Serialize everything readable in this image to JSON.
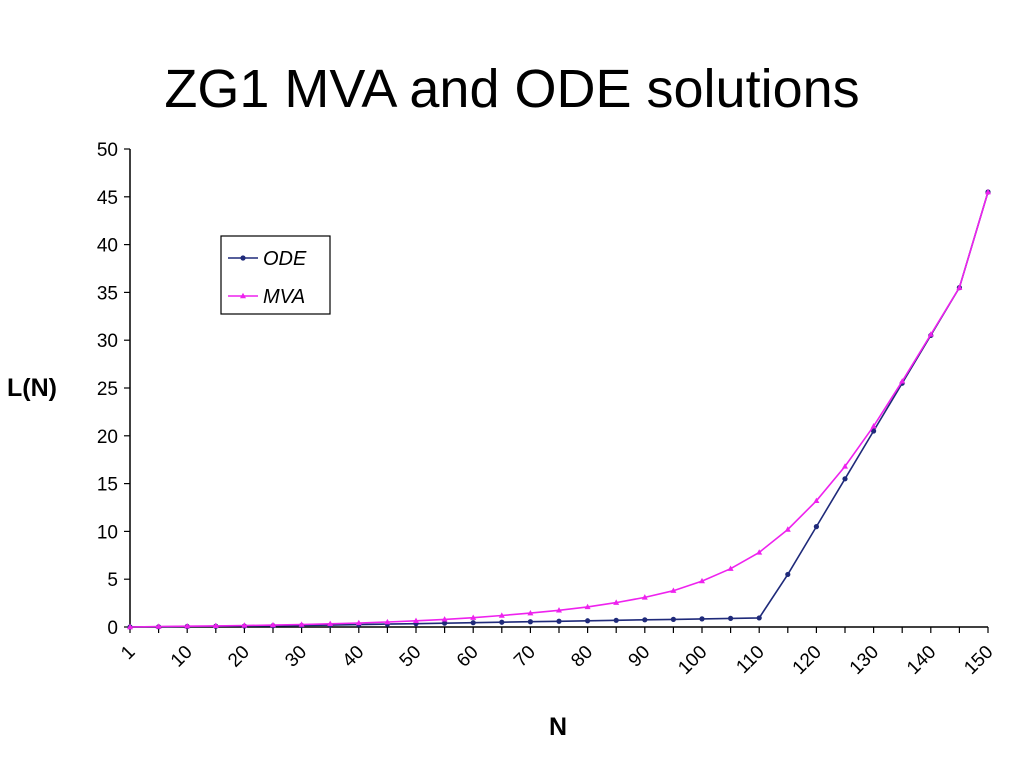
{
  "slide": {
    "title": "ZG1 MVA and ODE solutions"
  },
  "colors": {
    "ode": "#1f2a7a",
    "mva": "#ee22ee",
    "axis": "#000000"
  },
  "chart_data": {
    "type": "line",
    "xlabel": "N",
    "ylabel": "L(N)",
    "ylim": [
      0,
      50
    ],
    "yticks": [
      0,
      5,
      10,
      15,
      20,
      25,
      30,
      35,
      40,
      45,
      50
    ],
    "x_tick_labels": [
      "1",
      "10",
      "20",
      "30",
      "40",
      "50",
      "60",
      "70",
      "80",
      "90",
      "100",
      "110",
      "120",
      "130",
      "140",
      "150"
    ],
    "grid": false,
    "legend_position": "top-left",
    "x": [
      1,
      5,
      10,
      15,
      20,
      25,
      30,
      35,
      40,
      45,
      50,
      55,
      60,
      65,
      70,
      75,
      80,
      85,
      90,
      95,
      100,
      105,
      110,
      115,
      120,
      125,
      130,
      135,
      140,
      145,
      150
    ],
    "series": [
      {
        "name": "ODE",
        "color": "#1f2a7a",
        "marker": "circle",
        "values": [
          0.0,
          0.02,
          0.05,
          0.08,
          0.1,
          0.13,
          0.16,
          0.2,
          0.25,
          0.3,
          0.35,
          0.4,
          0.45,
          0.5,
          0.55,
          0.6,
          0.65,
          0.7,
          0.75,
          0.8,
          0.85,
          0.9,
          0.95,
          5.5,
          10.5,
          15.5,
          20.5,
          25.5,
          30.5,
          35.5,
          45.5
        ]
      },
      {
        "name": "MVA",
        "color": "#ee22ee",
        "marker": "triangle",
        "values": [
          0.0,
          0.05,
          0.08,
          0.12,
          0.16,
          0.2,
          0.26,
          0.33,
          0.42,
          0.52,
          0.65,
          0.8,
          0.97,
          1.2,
          1.45,
          1.75,
          2.1,
          2.55,
          3.1,
          3.8,
          4.8,
          6.1,
          7.8,
          10.2,
          13.2,
          16.8,
          21.0,
          25.7,
          30.6,
          35.5,
          45.5
        ]
      }
    ]
  }
}
